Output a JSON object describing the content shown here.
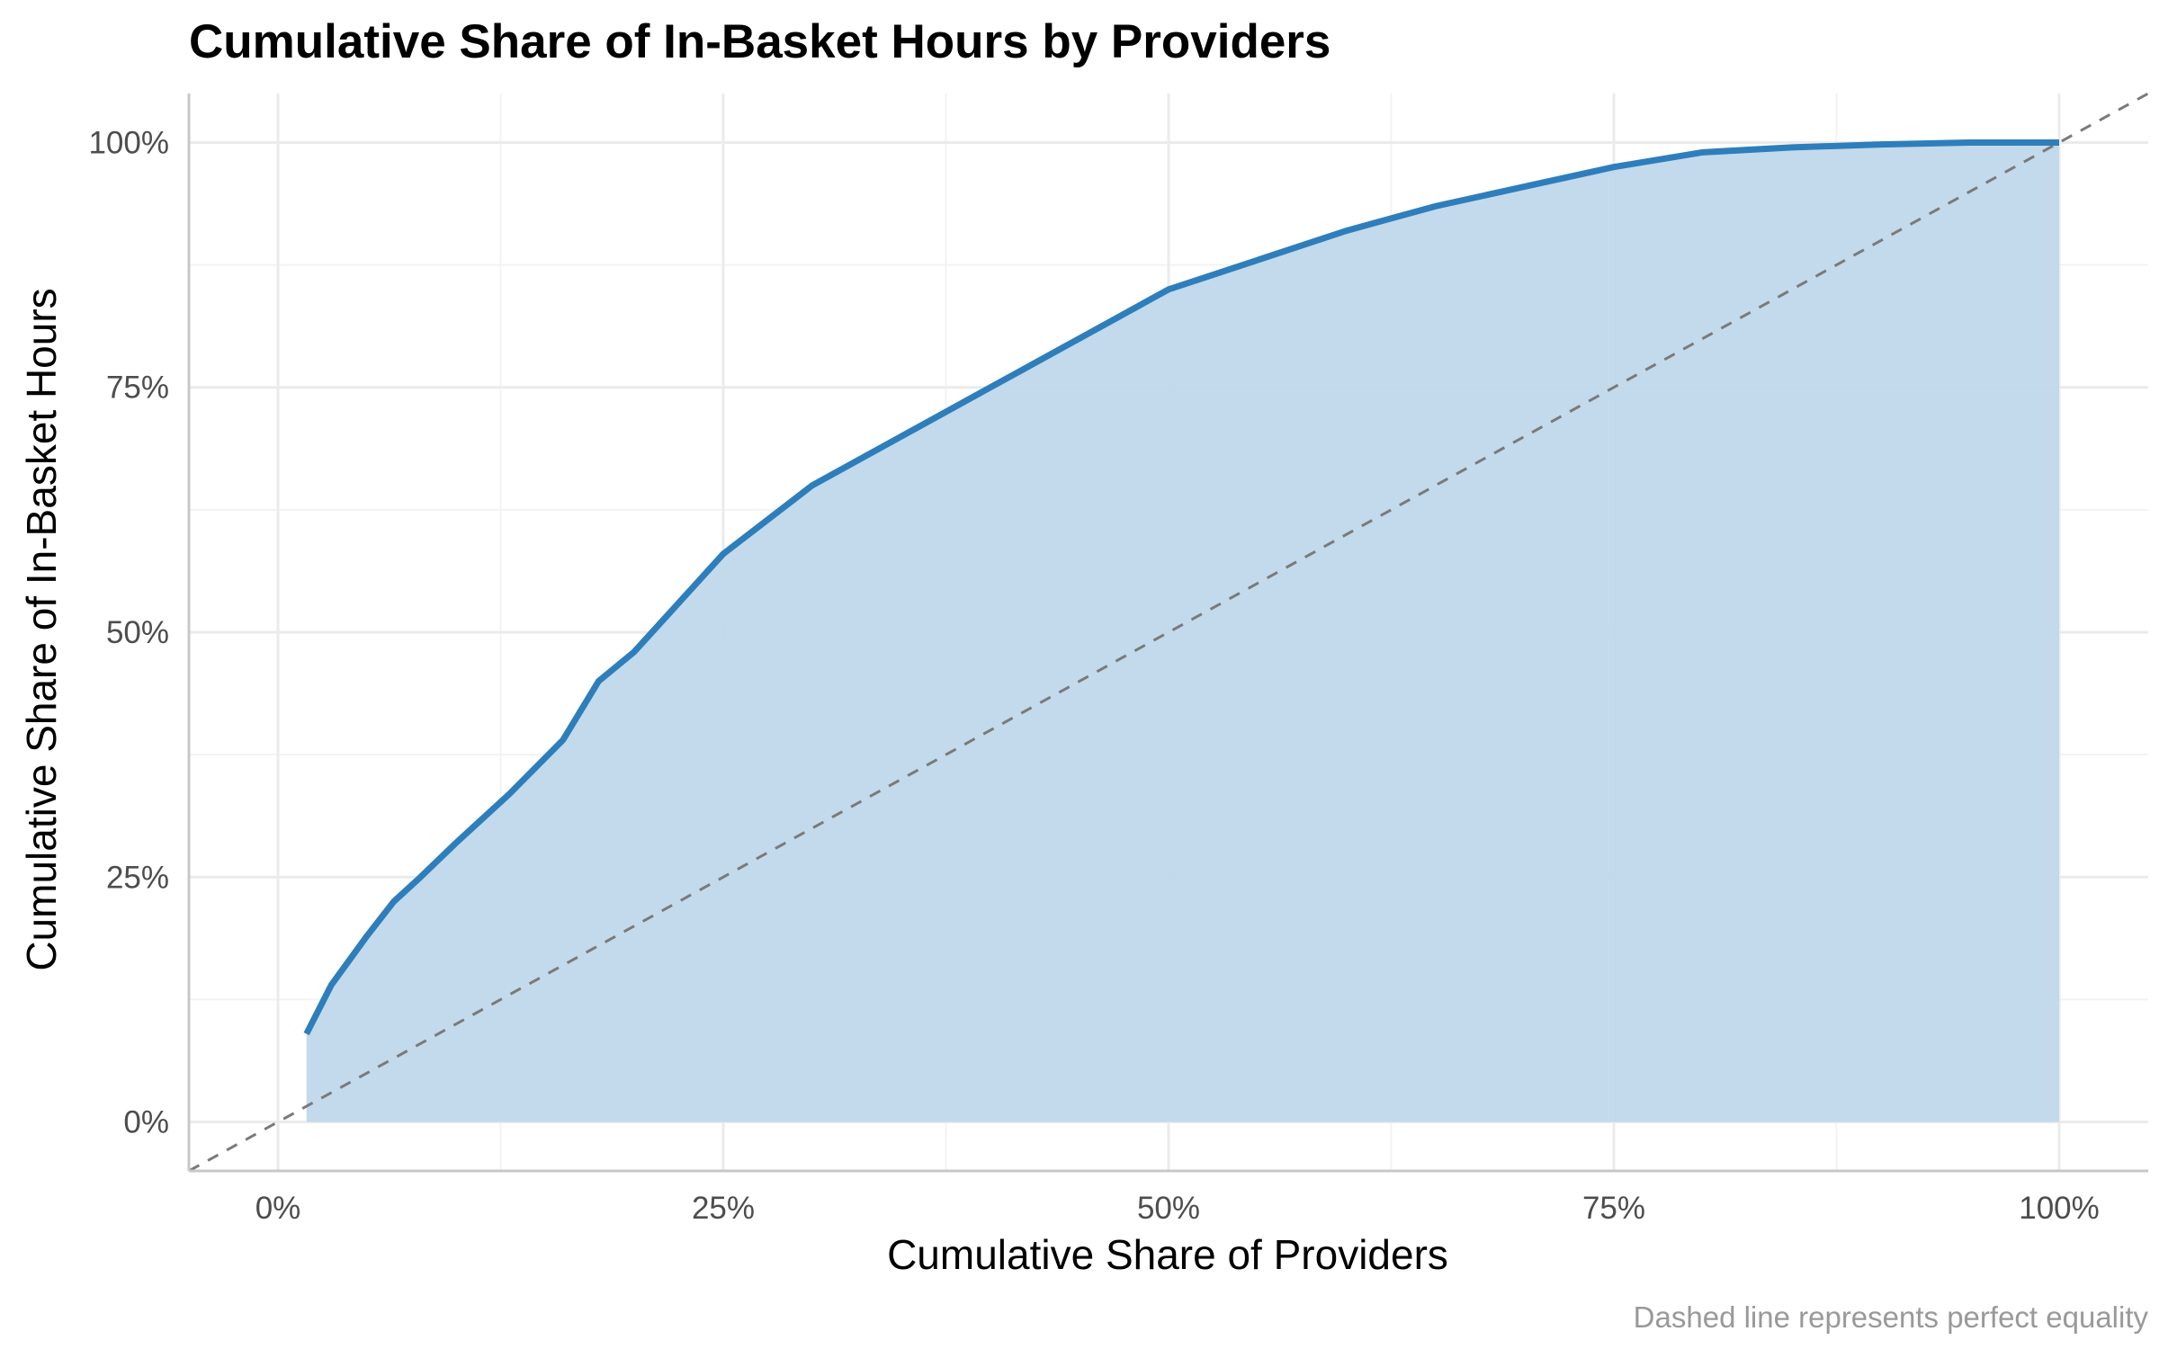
{
  "chart_data": {
    "type": "area",
    "title": "Cumulative Share of In-Basket Hours by Providers",
    "xlabel": "Cumulative Share of Providers",
    "ylabel": "Cumulative Share of In-Basket Hours",
    "caption": "Dashed line represents perfect equality",
    "xlim": [
      -0.05,
      1.05
    ],
    "ylim": [
      -0.05,
      1.05
    ],
    "grid": true,
    "x_ticks": [
      {
        "value": 0,
        "label": "0%"
      },
      {
        "value": 0.25,
        "label": "25%"
      },
      {
        "value": 0.5,
        "label": "50%"
      },
      {
        "value": 0.75,
        "label": "75%"
      },
      {
        "value": 1,
        "label": "100%"
      }
    ],
    "y_ticks": [
      {
        "value": 0,
        "label": "0%"
      },
      {
        "value": 0.25,
        "label": "25%"
      },
      {
        "value": 0.5,
        "label": "50%"
      },
      {
        "value": 0.75,
        "label": "75%"
      },
      {
        "value": 1,
        "label": "100%"
      }
    ],
    "series": [
      {
        "x": [
          0.016,
          0.03,
          0.05,
          0.065,
          0.08,
          0.1,
          0.13,
          0.16,
          0.18,
          0.2,
          0.22,
          0.25,
          0.3,
          0.35,
          0.4,
          0.45,
          0.5,
          0.55,
          0.6,
          0.65,
          0.7,
          0.75,
          0.8,
          0.85,
          0.9,
          0.95,
          1.0
        ],
        "y": [
          0.09,
          0.14,
          0.19,
          0.225,
          0.25,
          0.285,
          0.335,
          0.39,
          0.45,
          0.48,
          0.52,
          0.58,
          0.65,
          0.7,
          0.75,
          0.8,
          0.85,
          0.88,
          0.91,
          0.935,
          0.955,
          0.975,
          0.99,
          0.995,
          0.998,
          1.0,
          1.0
        ]
      }
    ],
    "reference_line": {
      "x": [
        -0.05,
        1.05
      ],
      "y": [
        -0.05,
        1.05
      ],
      "style": "dashed"
    },
    "colors": {
      "line": "#2e7ebc",
      "fill": "#bfd8ea",
      "reference": "#7a7a7a",
      "grid": "#ebebeb",
      "axis": "#c8c8c8"
    }
  }
}
